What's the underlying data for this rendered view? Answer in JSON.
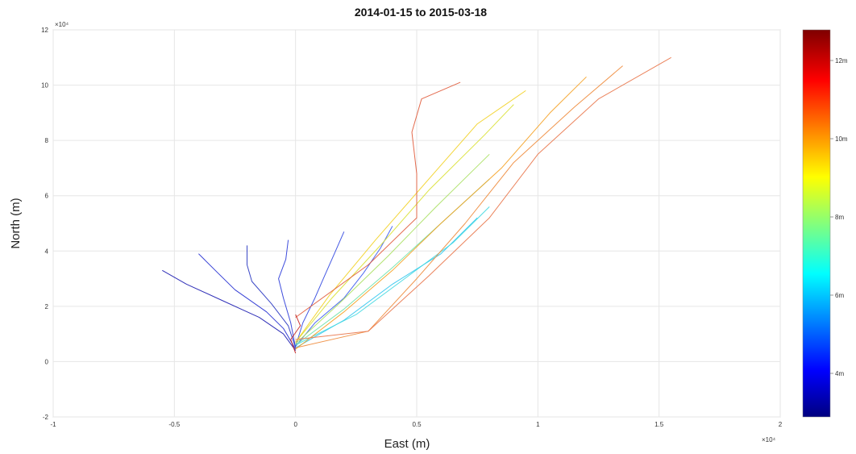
{
  "chart_data": {
    "type": "line",
    "title": "2014-01-15 to 2015-03-18",
    "xlabel": "East (m)",
    "ylabel": "North (m)",
    "xlim": [
      -1,
      2
    ],
    "ylim": [
      -2,
      12
    ],
    "x_exponent_label": "×10⁴",
    "y_exponent_label": "×10⁴",
    "x_ticks": [
      -1,
      -0.5,
      0,
      0.5,
      1,
      1.5,
      2
    ],
    "x_tick_labels": [
      "-1",
      "-0.5",
      "0",
      "0.5",
      "1",
      "1.5",
      "2"
    ],
    "y_ticks": [
      -2,
      0,
      2,
      4,
      6,
      8,
      10,
      12
    ],
    "y_tick_labels": [
      "-2",
      "0",
      "2",
      "4",
      "6",
      "8",
      "10",
      "12"
    ],
    "grid": true,
    "colorbar": {
      "position": "right",
      "colormap": "jet",
      "tick_labels": [
        "12m",
        "10m",
        "8m",
        "6m",
        "4m"
      ]
    },
    "series": [
      {
        "color": "#1a1ab0",
        "x": [
          0.0,
          -0.05,
          -0.15,
          -0.3,
          -0.45,
          -0.55
        ],
        "y": [
          0.4,
          1.0,
          1.6,
          2.2,
          2.8,
          3.3
        ]
      },
      {
        "color": "#1f2ad0",
        "x": [
          0.0,
          -0.05,
          -0.12,
          -0.25,
          -0.32,
          -0.4
        ],
        "y": [
          0.45,
          1.2,
          1.8,
          2.6,
          3.2,
          3.9
        ]
      },
      {
        "color": "#2533c0",
        "x": [
          0.0,
          -0.03,
          -0.1,
          -0.18,
          -0.2,
          -0.2
        ],
        "y": [
          0.5,
          1.3,
          2.1,
          2.9,
          3.5,
          4.2
        ]
      },
      {
        "color": "#2a3ad8",
        "x": [
          0.0,
          -0.02,
          -0.05,
          -0.07,
          -0.04,
          -0.03
        ],
        "y": [
          0.5,
          1.4,
          2.3,
          3.0,
          3.7,
          4.4
        ]
      },
      {
        "color": "#3046e0",
        "x": [
          0.0,
          0.03,
          0.08,
          0.12,
          0.16,
          0.2
        ],
        "y": [
          0.55,
          1.4,
          2.3,
          3.1,
          3.9,
          4.7
        ]
      },
      {
        "color": "#3a5af0",
        "x": [
          0.0,
          0.08,
          0.2,
          0.28,
          0.35,
          0.4
        ],
        "y": [
          0.55,
          1.4,
          2.3,
          3.2,
          4.1,
          4.9
        ]
      },
      {
        "color": "#2ec5f0",
        "x": [
          0.0,
          0.2,
          0.4,
          0.6,
          0.75
        ],
        "y": [
          0.5,
          1.5,
          2.8,
          3.9,
          5.2
        ]
      },
      {
        "color": "#41d8e0",
        "x": [
          0.0,
          0.25,
          0.45,
          0.65,
          0.8
        ],
        "y": [
          0.6,
          1.7,
          3.0,
          4.3,
          5.6
        ]
      },
      {
        "color": "#6ee2a8",
        "x": [
          0.0,
          0.2,
          0.4,
          0.6,
          0.8
        ],
        "y": [
          0.6,
          1.9,
          3.4,
          5.0,
          6.6
        ]
      },
      {
        "color": "#a8e060",
        "x": [
          0.0,
          0.18,
          0.38,
          0.58,
          0.8
        ],
        "y": [
          0.65,
          2.1,
          3.8,
          5.6,
          7.5
        ]
      },
      {
        "color": "#d9e030",
        "x": [
          0.0,
          0.15,
          0.35,
          0.55,
          0.78,
          0.9
        ],
        "y": [
          0.7,
          2.3,
          4.2,
          6.2,
          8.2,
          9.3
        ]
      },
      {
        "color": "#f2d020",
        "x": [
          0.0,
          0.14,
          0.33,
          0.55,
          0.75,
          0.95
        ],
        "y": [
          0.7,
          2.4,
          4.4,
          6.6,
          8.6,
          9.8
        ]
      },
      {
        "color": "#f5a020",
        "x": [
          0.0,
          0.2,
          0.4,
          0.6,
          0.85,
          1.05,
          1.2
        ],
        "y": [
          0.45,
          1.8,
          3.3,
          5.0,
          7.0,
          9.0,
          10.3
        ]
      },
      {
        "color": "#ee8a3a",
        "x": [
          0.0,
          0.3,
          0.5,
          0.7,
          0.9,
          1.15,
          1.35
        ],
        "y": [
          0.5,
          1.1,
          3.0,
          5.0,
          7.2,
          9.2,
          10.7
        ]
      },
      {
        "color": "#e9764a",
        "x": [
          0.0,
          0.3,
          0.55,
          0.8,
          1.0,
          1.25,
          1.55
        ],
        "y": [
          0.8,
          1.1,
          3.1,
          5.2,
          7.5,
          9.5,
          11.0
        ]
      },
      {
        "color": "#e05a3a",
        "x": [
          0.0,
          0.3,
          0.5,
          0.5,
          0.48,
          0.52,
          0.68
        ],
        "y": [
          1.6,
          3.5,
          5.2,
          6.8,
          8.3,
          9.5,
          10.1
        ]
      },
      {
        "color": "#c8201e",
        "x": [
          0.0,
          -0.02,
          0.02,
          0.0
        ],
        "y": [
          0.3,
          0.8,
          1.3,
          1.7
        ]
      }
    ]
  }
}
